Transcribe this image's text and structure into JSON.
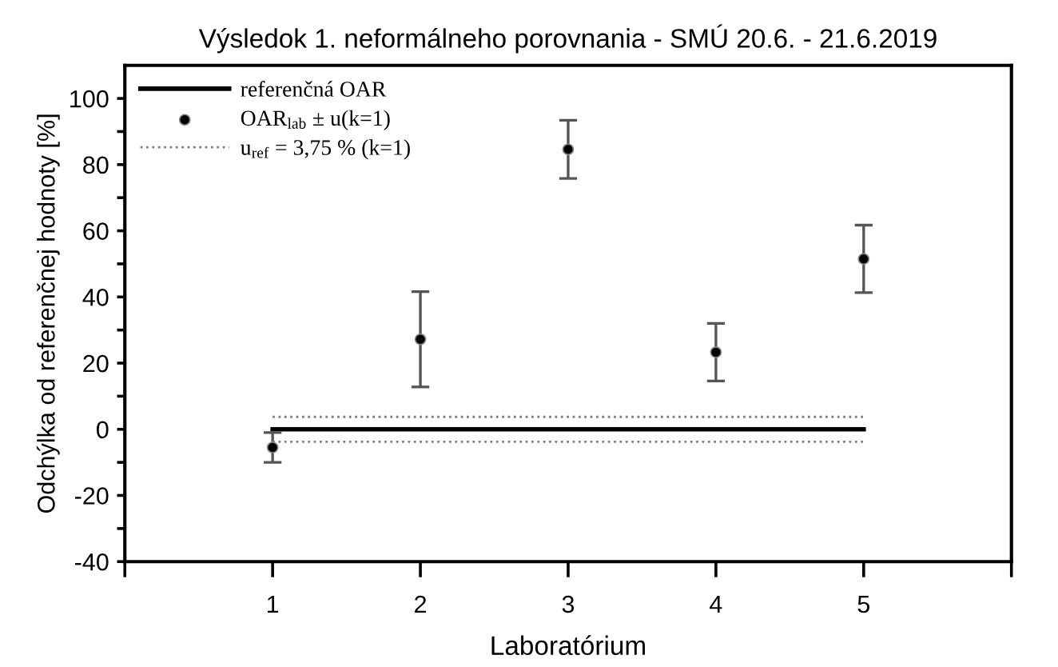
{
  "chart_data": {
    "type": "scatter",
    "title": "Výsledok 1. neformálneho porovnania - SMÚ 20.6. - 21.6.2019",
    "xlabel": "Laboratórium",
    "ylabel": "Odchýlka od referenčnej hodnoty [%]",
    "series": [
      {
        "name": "referenčná OAR",
        "type": "line",
        "color": "#000000",
        "line_style": "solid",
        "x": [
          1,
          5
        ],
        "values": [
          0,
          0
        ]
      },
      {
        "name": "OAR$_{lab}$ ± u(k=1)",
        "color": "#000000",
        "marker": "circle",
        "x": [
          1,
          2,
          3,
          4,
          5
        ],
        "values": [
          -5.5,
          27.2,
          84.6,
          23.3,
          51.5
        ],
        "errors": [
          4.5,
          14.4,
          8.8,
          8.7,
          10.2
        ]
      },
      {
        "name": "u$_{ref}$ = 3,75 % (k=1)",
        "type": "line",
        "color": "#808080",
        "line_style": "dotted",
        "x": [
          1,
          5
        ],
        "values": [
          3.75,
          3.75
        ]
      },
      {
        "type": "line",
        "color": "#808080",
        "line_style": "dotted",
        "x": [
          1,
          5
        ],
        "values": [
          -3.75,
          -3.75
        ]
      }
    ],
    "xlim": [
      0,
      6
    ],
    "xticks": [
      {
        "value": 0,
        "label": null
      },
      1,
      2,
      3,
      4,
      5,
      {
        "value": 6,
        "label": null
      }
    ],
    "ylim": [
      -40,
      110
    ],
    "yticks": [
      -40,
      {
        "value": -30,
        "label": null
      },
      -20,
      {
        "value": -10,
        "label": null
      },
      0,
      {
        "value": 10,
        "label": null
      },
      20,
      {
        "value": 30,
        "label": null
      },
      40,
      {
        "value": 50,
        "label": null
      },
      60,
      {
        "value": 70,
        "label": null
      },
      80,
      {
        "value": 90,
        "label": null
      },
      100
    ],
    "grid": false,
    "legend": "top left"
  }
}
